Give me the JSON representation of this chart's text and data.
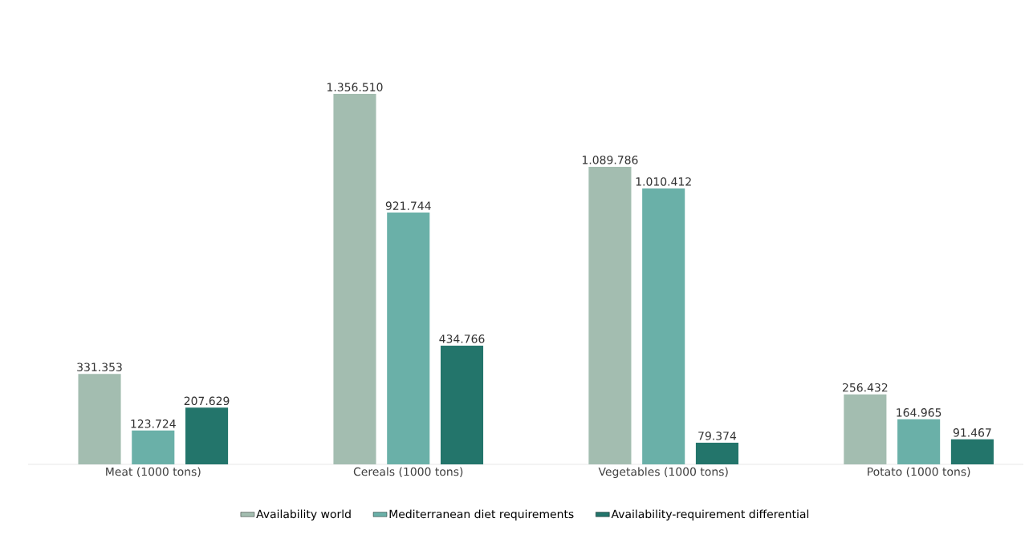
{
  "chart_data": {
    "type": "bar",
    "categories": [
      "Meat (1000 tons)",
      "Cereals (1000 tons)",
      "Vegetables (1000 tons)",
      "Potato (1000 tons)"
    ],
    "series": [
      {
        "name": "Availability world",
        "color": "#a3bdb0",
        "values": [
          331353,
          1356510,
          1089786,
          256432
        ],
        "value_labels": [
          "331.353",
          "1.356.510",
          "1.089.786",
          "256.432"
        ]
      },
      {
        "name": "Mediterranean diet requirements",
        "color": "#6ab0a8",
        "values": [
          123724,
          921744,
          1010412,
          164965
        ],
        "value_labels": [
          "123.724",
          "921.744",
          "1.010.412",
          "164.965"
        ]
      },
      {
        "name": "Availability-requirement differential",
        "color": "#23756b",
        "values": [
          207629,
          434766,
          79374,
          91467
        ],
        "value_labels": [
          "207.629",
          "434.766",
          "79.374",
          "91.467"
        ]
      }
    ],
    "legend": "bottom"
  }
}
